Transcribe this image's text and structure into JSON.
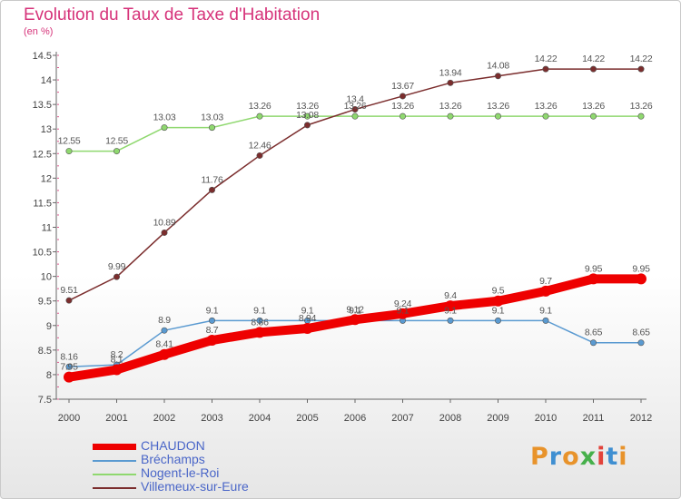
{
  "title": "Evolution du Taux de Taxe d'Habitation",
  "unit": "(en %)",
  "logo_text": "Proxiti",
  "logo_colors": [
    "#e8932b",
    "#3f8fd1",
    "#e8932b",
    "#46b04b",
    "#e2423a",
    "#3f8fd1",
    "#e8932b"
  ],
  "chart_data": {
    "type": "line",
    "x": [
      "2000",
      "2001",
      "2002",
      "2003",
      "2004",
      "2005",
      "2006",
      "2007",
      "2008",
      "2009",
      "2010",
      "2011",
      "2012"
    ],
    "ylim": [
      7.5,
      14.5
    ],
    "yticks": [
      "7.5",
      "8",
      "8.5",
      "9",
      "9.5",
      "10",
      "10.5",
      "11",
      "11.5",
      "12",
      "12.5",
      "13",
      "13.5",
      "14",
      "14.5"
    ],
    "grid": false,
    "legend_position": "bottom-left",
    "series": [
      {
        "name": "CHAUDON",
        "color": "#ee0000",
        "values": [
          7.95,
          8.1,
          8.41,
          8.7,
          8.86,
          8.94,
          9.12,
          9.24,
          9.4,
          9.5,
          9.7,
          9.95,
          9.95
        ],
        "labels": [
          "7.95",
          "8.1",
          "8.41",
          "8.7",
          "8.86",
          "8.94",
          "9.12",
          "9.24",
          "9.4",
          "9.5",
          "9.7",
          "9.95",
          "9.95"
        ]
      },
      {
        "name": "Bréchamps",
        "color": "#5a9ad1",
        "values": [
          8.16,
          8.2,
          8.9,
          9.1,
          9.1,
          9.1,
          9.1,
          9.1,
          9.1,
          9.1,
          9.1,
          8.65,
          8.65
        ],
        "labels": [
          "8.16",
          "8.2",
          "8.9",
          "9.1",
          "9.1",
          "9.1",
          "9.1",
          "9.1",
          "9.1",
          "9.1",
          "9.1",
          "8.65",
          "8.65"
        ]
      },
      {
        "name": "Nogent-le-Roi",
        "color": "#8fd86f",
        "values": [
          12.55,
          12.55,
          13.03,
          13.03,
          13.26,
          13.26,
          13.26,
          13.26,
          13.26,
          13.26,
          13.26,
          13.26,
          13.26
        ],
        "labels": [
          "12.55",
          "12.55",
          "13.03",
          "13.03",
          "13.26",
          "13.26",
          "13.26",
          "13.26",
          "13.26",
          "13.26",
          "13.26",
          "13.26",
          "13.26"
        ]
      },
      {
        "name": "Villemeux-sur-Eure",
        "color": "#7b2d2d",
        "values": [
          9.51,
          9.99,
          10.89,
          11.76,
          12.46,
          13.08,
          13.4,
          13.67,
          13.94,
          14.08,
          14.22,
          14.22,
          14.22
        ],
        "labels": [
          "9.51",
          "9.99",
          "10.89",
          "11.76",
          "12.46",
          "13.08",
          "13.4",
          "13.67",
          "13.94",
          "14.08",
          "14.22",
          "14.22",
          "14.22"
        ]
      }
    ]
  }
}
